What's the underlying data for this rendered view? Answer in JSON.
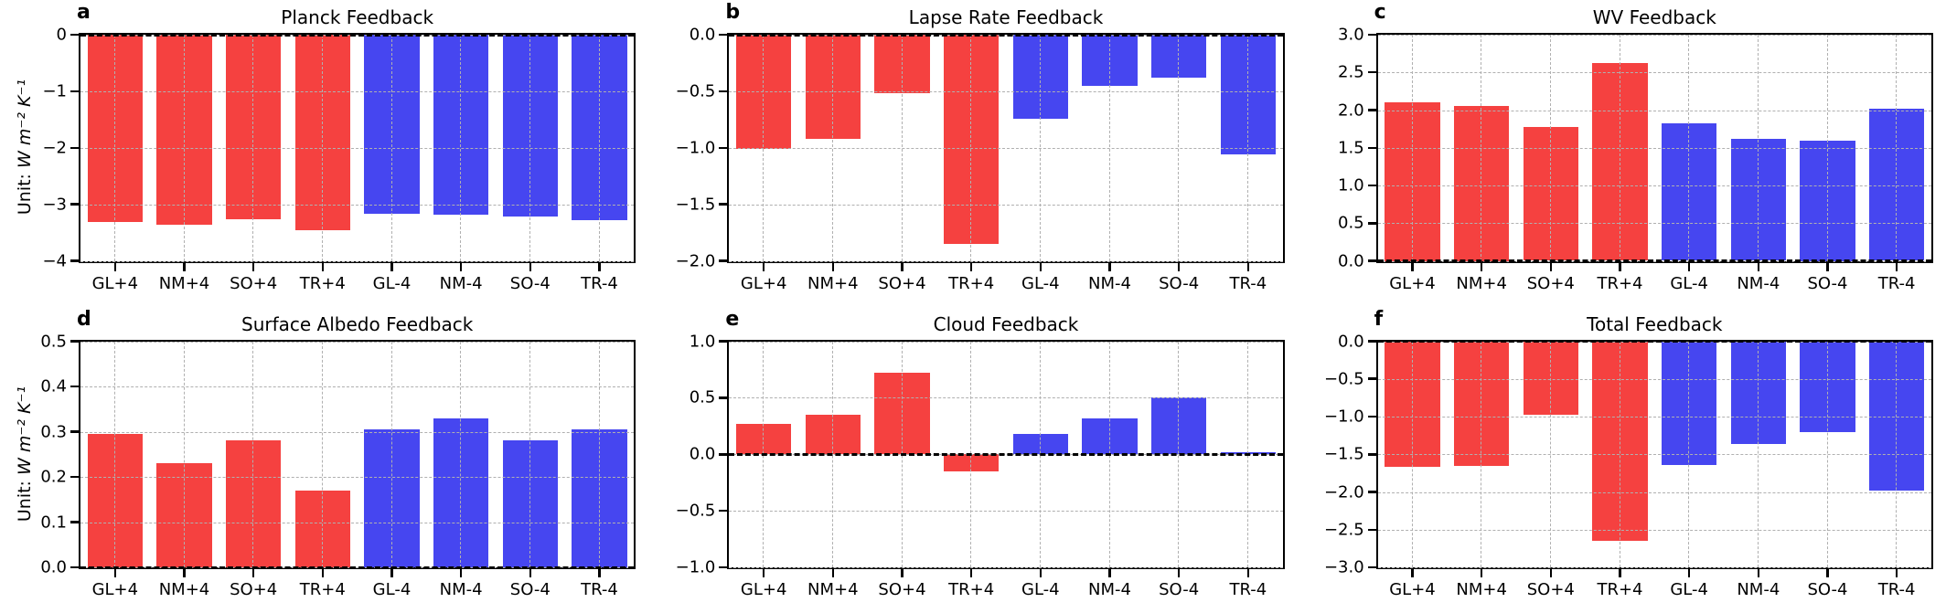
{
  "figure": {
    "unit_prefix": "Unit: ",
    "unit_math": "W m⁻² K⁻¹"
  },
  "chart_data": {
    "type": "bar",
    "categories": [
      "GL+4",
      "NM+4",
      "SO+4",
      "TR+4",
      "GL-4",
      "NM-4",
      "SO-4",
      "TR-4"
    ],
    "colors": {
      "plus4_bars": "#f54140",
      "minus4_bars": "#4646f0",
      "grid": "#b0b0b0",
      "zero_line": "#000000"
    },
    "legend": "none",
    "grid": "dashed, both axes, drawn over bars",
    "layout": "2 rows x 3 columns of bar panels sharing the same 8 categories; first 4 bars red (+4 experiments), last 4 bars blue (-4 experiments)",
    "panels": [
      {
        "letter": "a",
        "title": "Planck Feedback",
        "ylabel": "Unit: W m⁻² K⁻¹",
        "ylim": [
          -4,
          0
        ],
        "yticks": [
          {
            "label": "0",
            "value": 0
          },
          {
            "label": "−1",
            "value": -1
          },
          {
            "label": "−2",
            "value": -2
          },
          {
            "label": "−3",
            "value": -3
          },
          {
            "label": "−4",
            "value": -4
          }
        ],
        "values": [
          -3.32,
          -3.36,
          -3.26,
          -3.46,
          -3.16,
          -3.18,
          -3.21,
          -3.28
        ],
        "zero_line": true
      },
      {
        "letter": "b",
        "title": "Lapse Rate Feedback",
        "ylim": [
          -2,
          0
        ],
        "yticks": [
          {
            "label": "0.0",
            "value": 0
          },
          {
            "label": "−0.5",
            "value": -0.5
          },
          {
            "label": "−1.0",
            "value": -1.0
          },
          {
            "label": "−1.5",
            "value": -1.5
          },
          {
            "label": "−2.0",
            "value": -2.0
          }
        ],
        "values": [
          -1.01,
          -0.92,
          -0.52,
          -1.85,
          -0.74,
          -0.45,
          -0.38,
          -1.06
        ],
        "zero_line": true
      },
      {
        "letter": "c",
        "title": "WV Feedback",
        "ylim": [
          0,
          3
        ],
        "yticks": [
          {
            "label": "3.0",
            "value": 3.0
          },
          {
            "label": "2.5",
            "value": 2.5
          },
          {
            "label": "2.0",
            "value": 2.0
          },
          {
            "label": "1.5",
            "value": 1.5
          },
          {
            "label": "1.0",
            "value": 1.0
          },
          {
            "label": "0.5",
            "value": 0.5
          },
          {
            "label": "0.0",
            "value": 0
          }
        ],
        "values": [
          2.1,
          2.05,
          1.78,
          2.63,
          1.82,
          1.62,
          1.6,
          2.02
        ],
        "zero_line": true
      },
      {
        "letter": "d",
        "title": "Surface Albedo Feedback",
        "ylabel": "Unit: W m⁻² K⁻¹",
        "ylim": [
          0,
          0.5
        ],
        "yticks": [
          {
            "label": "0.5",
            "value": 0.5
          },
          {
            "label": "0.4",
            "value": 0.4
          },
          {
            "label": "0.3",
            "value": 0.3
          },
          {
            "label": "0.2",
            "value": 0.2
          },
          {
            "label": "0.1",
            "value": 0.1
          },
          {
            "label": "0.0",
            "value": 0
          }
        ],
        "values": [
          0.295,
          0.23,
          0.28,
          0.17,
          0.305,
          0.33,
          0.28,
          0.305
        ],
        "zero_line": true
      },
      {
        "letter": "e",
        "title": "Cloud Feedback",
        "ylim": [
          -1,
          1
        ],
        "yticks": [
          {
            "label": "1.0",
            "value": 1.0
          },
          {
            "label": "0.5",
            "value": 0.5
          },
          {
            "label": "0.0",
            "value": 0
          },
          {
            "label": "−0.5",
            "value": -0.5
          },
          {
            "label": "−1.0",
            "value": -1.0
          }
        ],
        "values": [
          0.27,
          0.35,
          0.72,
          -0.15,
          0.18,
          0.32,
          0.5,
          0.02
        ],
        "zero_line": true
      },
      {
        "letter": "f",
        "title": "Total Feedback",
        "ylim": [
          -3,
          0
        ],
        "yticks": [
          {
            "label": "0.0",
            "value": 0
          },
          {
            "label": "−0.5",
            "value": -0.5
          },
          {
            "label": "−1.0",
            "value": -1.0
          },
          {
            "label": "−1.5",
            "value": -1.5
          },
          {
            "label": "−2.0",
            "value": -2.0
          },
          {
            "label": "−2.5",
            "value": -2.5
          },
          {
            "label": "−3.0",
            "value": -3.0
          }
        ],
        "values": [
          -1.67,
          -1.65,
          -0.98,
          -2.65,
          -1.64,
          -1.36,
          -1.21,
          -1.98
        ],
        "zero_line": true
      }
    ]
  }
}
